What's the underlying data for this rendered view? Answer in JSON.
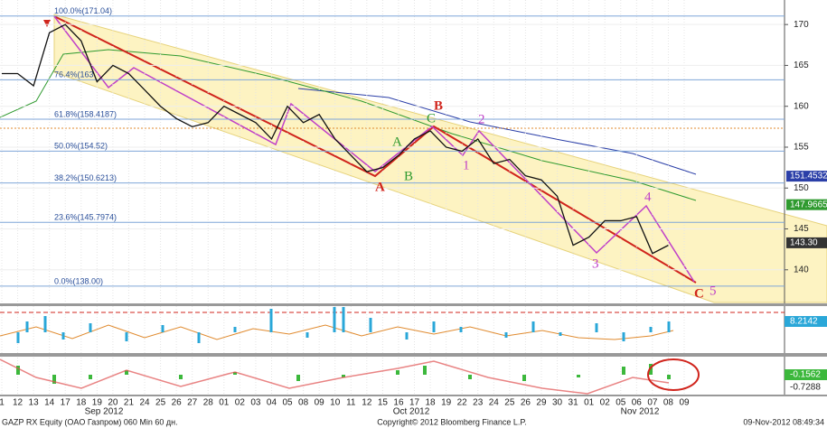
{
  "chart_data": {
    "type": "line",
    "title": "GAZP RX Equity (OAO Газпром) 060 Min 60 дн.",
    "copyright": "Copyright© 2012 Bloomberg Finance L.P.",
    "timestamp": "09-Nov-2012 08:49:34",
    "months": [
      "Sep 2012",
      "Oct 2012",
      "Nov 2012"
    ],
    "categories": [
      "1",
      "12",
      "13",
      "14",
      "17",
      "18",
      "19",
      "20",
      "21",
      "24",
      "25",
      "26",
      "27",
      "28",
      "01",
      "02",
      "03",
      "04",
      "05",
      "08",
      "09",
      "10",
      "11",
      "12",
      "15",
      "16",
      "17",
      "18",
      "19",
      "22",
      "23",
      "24",
      "25",
      "26",
      "29",
      "30",
      "31",
      "01",
      "02",
      "05",
      "06",
      "07",
      "08",
      "09"
    ],
    "series": [
      {
        "name": "GAZP",
        "color": "#111111",
        "values": [
          164,
          164,
          162.5,
          169,
          170,
          168,
          163,
          165,
          164,
          162,
          160,
          158.5,
          157.5,
          158,
          160,
          159,
          158,
          156,
          160,
          158,
          159,
          156,
          154,
          152,
          152.5,
          154,
          156,
          157,
          155,
          154.5,
          156,
          153,
          153.5,
          151.5,
          151,
          149,
          143,
          144,
          146,
          146,
          146.5,
          142,
          143,
          null
        ]
      }
    ],
    "ylim": [
      136,
      173
    ],
    "yticks": [
      140,
      145,
      150,
      155,
      160,
      165,
      170
    ],
    "fib_levels": [
      {
        "value": 171.04,
        "label": "100.0%(171.04)"
      },
      {
        "value": 163.24,
        "label": "76.4%(163"
      },
      {
        "value": 158.4187,
        "label": "61.8%(158.4187)"
      },
      {
        "value": 154.52,
        "label": "50.0%(154.52)"
      },
      {
        "value": 150.6213,
        "label": "38.2%(150.6213)"
      },
      {
        "value": 145.7974,
        "label": "23.6%(145.7974)"
      },
      {
        "value": 138,
        "label": "0.0%(138.00)"
      }
    ],
    "last_values": [
      {
        "value": 151.4532,
        "color": "#2b3fa8"
      },
      {
        "value": 147.9665,
        "color": "#2f9a2f"
      },
      {
        "value": 143.3,
        "label": "143.30",
        "color": "#333333"
      }
    ],
    "annotations": [
      "A",
      "A",
      "B",
      "B",
      "C",
      "C",
      "1",
      "2",
      "3",
      "4",
      "5"
    ],
    "indicator_labels": [
      "8.2142",
      "-0.1562",
      "-0.7288"
    ]
  }
}
